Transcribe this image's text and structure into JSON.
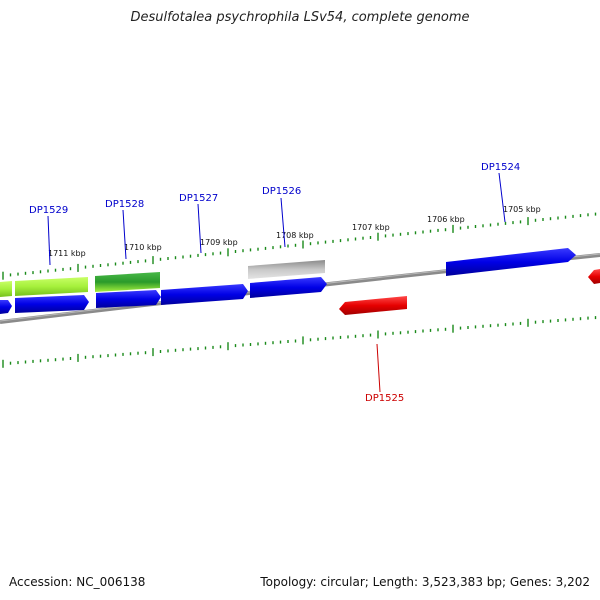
{
  "title": "Desulfotalea psychrophila LSv54, complete genome",
  "footer": {
    "accession": "Accession: NC_006138",
    "summary": "Topology: circular; Length: 3,523,383 bp; Genes: 3,202"
  },
  "scale_labels": [
    "1711 kbp",
    "1710 kbp",
    "1709 kbp",
    "1708 kbp",
    "1707 kbp",
    "1706 kbp",
    "1705 kbp"
  ],
  "gene_labels": [
    {
      "text": "DP1529",
      "color": "#0000cc"
    },
    {
      "text": "DP1528",
      "color": "#0000cc"
    },
    {
      "text": "DP1527",
      "color": "#0000cc"
    },
    {
      "text": "DP1526",
      "color": "#0000cc"
    },
    {
      "text": "DP1524",
      "color": "#0000cc"
    },
    {
      "text": "DP1525",
      "color": "#cc0000"
    }
  ],
  "colors": {
    "forward_gene": "#0000e6",
    "reverse_gene": "#e60000",
    "light_green": "#a6f03c",
    "dark_green": "#2a9a2a",
    "gray_gene": "#bdbdbd",
    "backbone": "#808080",
    "ticks": "#1a8a1a"
  }
}
